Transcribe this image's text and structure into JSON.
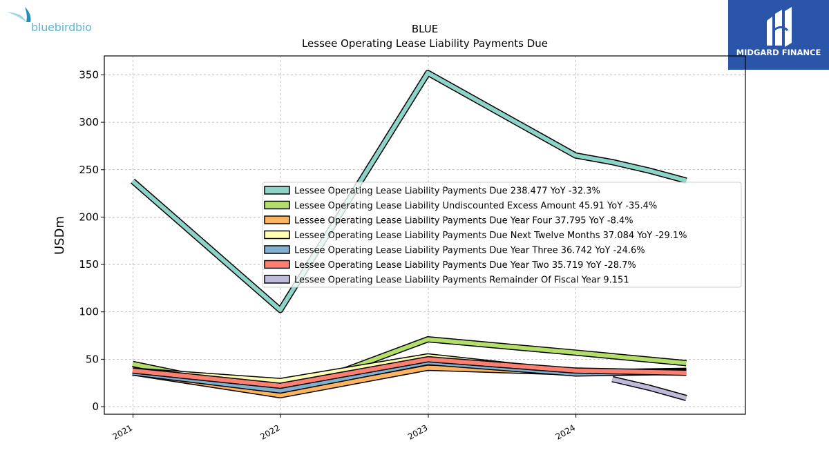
{
  "logos": {
    "company_wordmark": "bluebirdbio",
    "publisher": "MIDGARD FINANCE"
  },
  "chart_data": {
    "type": "line",
    "title": "BLUE",
    "subtitle": "Lessee Operating Lease Liability Payments Due",
    "xlabel": "",
    "ylabel": "USDm",
    "x_ticks": [
      "2021",
      "2022",
      "2023",
      "2024"
    ],
    "y_ticks": [
      0,
      50,
      100,
      150,
      200,
      250,
      300,
      350
    ],
    "xlim": [
      "2020-10-22",
      "2025-02-23"
    ],
    "ylim": [
      -8,
      370
    ],
    "grid": true,
    "legend_position": "center-right",
    "series": [
      {
        "name": "Lessee Operating Lease Liability Payments Due",
        "legend": "Lessee Operating Lease Liability Payments Due  238.477 YoY -32.3%",
        "color": "#8dd3c7",
        "points": [
          [
            "2020-12-31",
            238
          ],
          [
            "2021-12-31",
            102
          ],
          [
            "2022-12-31",
            352
          ],
          [
            "2023-12-31",
            265
          ],
          [
            "2024-03-31",
            258
          ],
          [
            "2024-06-30",
            249
          ],
          [
            "2024-09-30",
            238.477
          ]
        ]
      },
      {
        "name": "Lessee Operating Lease Liability Undiscounted Excess Amount",
        "legend": "Lessee Operating Lease Liability Undiscounted Excess Amount  45.91 YoY -35.4%",
        "color": "#b3de69",
        "points": [
          [
            "2020-12-31",
            45
          ],
          [
            "2021-12-31",
            13
          ],
          [
            "2022-12-31",
            71
          ],
          [
            "2023-12-31",
            57
          ],
          [
            "2024-09-30",
            45.91
          ]
        ]
      },
      {
        "name": "Lessee Operating Lease Liability Payments Due Year Four",
        "legend": "Lessee Operating Lease Liability Payments Due Year Four  37.795 YoY -8.4%",
        "color": "#fdb462",
        "points": [
          [
            "2020-12-31",
            36
          ],
          [
            "2021-12-31",
            12
          ],
          [
            "2022-12-31",
            41
          ],
          [
            "2023-12-31",
            36
          ],
          [
            "2024-09-30",
            37.795
          ]
        ]
      },
      {
        "name": "Lessee Operating Lease Liability Payments Due Next Twelve Months",
        "legend": "Lessee Operating Lease Liability Payments Due Next Twelve Months  37.084 YoY -29.1%",
        "color": "#ffffb3",
        "points": [
          [
            "2020-12-31",
            38
          ],
          [
            "2021-12-31",
            27
          ],
          [
            "2022-12-31",
            53
          ],
          [
            "2023-12-31",
            36
          ],
          [
            "2024-09-30",
            37.084
          ]
        ]
      },
      {
        "name": "Lessee Operating Lease Liability Payments Due Year Three",
        "legend": "Lessee Operating Lease Liability Payments Due Year Three  36.742 YoY -24.6%",
        "color": "#80b1d3",
        "points": [
          [
            "2020-12-31",
            36
          ],
          [
            "2021-12-31",
            17
          ],
          [
            "2022-12-31",
            47
          ],
          [
            "2023-12-31",
            35
          ],
          [
            "2024-09-30",
            36.742
          ]
        ]
      },
      {
        "name": "Lessee Operating Lease Liability Payments Due Year Two",
        "legend": "Lessee Operating Lease Liability Payments Due Year Two  35.719 YoY -28.7%",
        "color": "#fb8072",
        "points": [
          [
            "2020-12-31",
            38
          ],
          [
            "2021-12-31",
            22
          ],
          [
            "2022-12-31",
            50
          ],
          [
            "2023-12-31",
            38
          ],
          [
            "2024-09-30",
            35.719
          ]
        ]
      },
      {
        "name": "Lessee Operating Lease Liability Payments Remainder Of Fiscal Year",
        "legend": "Lessee Operating Lease Liability Payments Remainder Of Fiscal Year  9.151",
        "color": "#bebada",
        "points": [
          [
            "2024-03-31",
            29
          ],
          [
            "2024-06-30",
            20
          ],
          [
            "2024-09-30",
            9.151
          ]
        ]
      }
    ]
  }
}
